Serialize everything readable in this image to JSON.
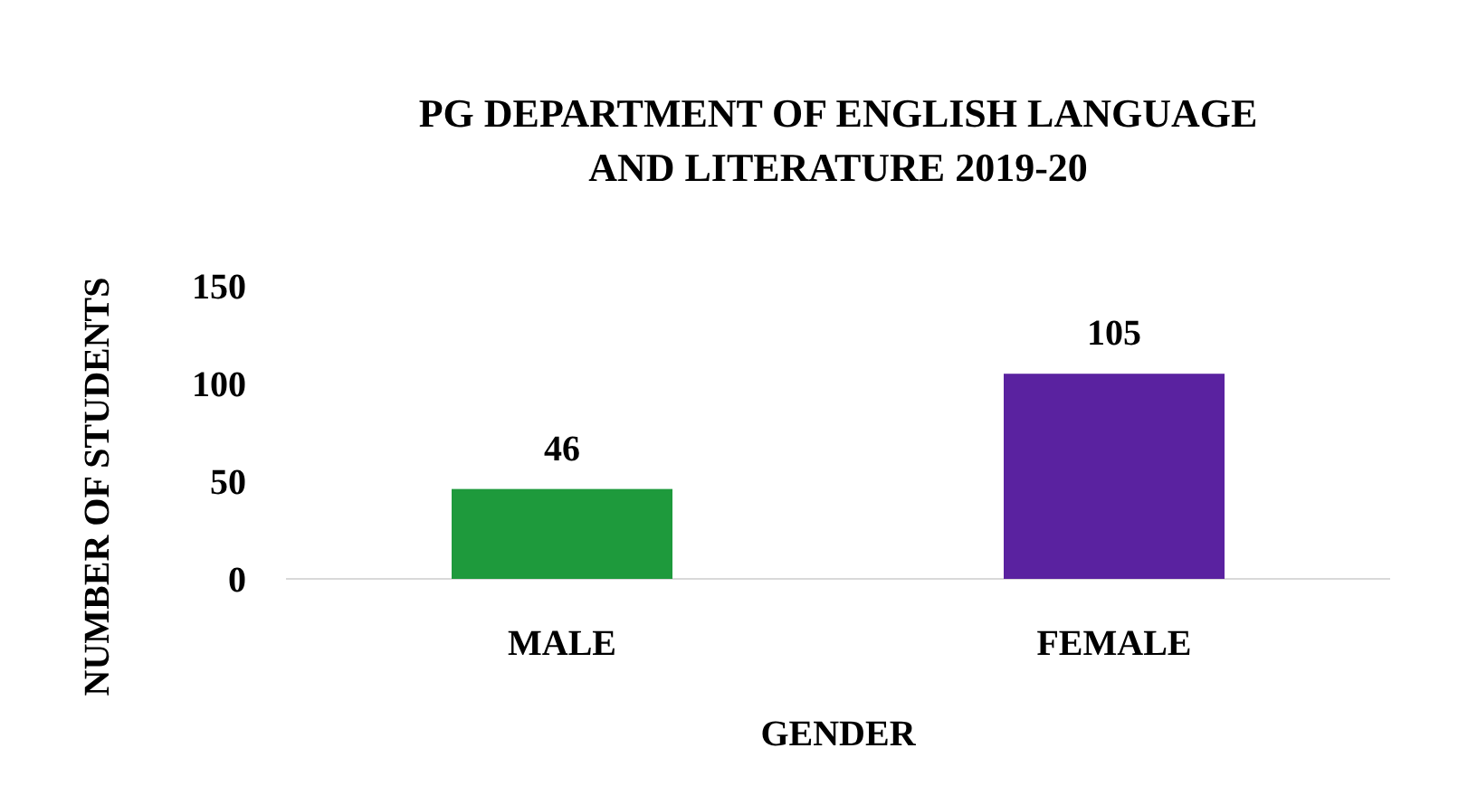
{
  "chart_data": {
    "type": "bar",
    "title": "PG DEPARTMENT OF ENGLISH LANGUAGE AND LITERATURE 2019-20",
    "xlabel": "GENDER",
    "ylabel": "NUMBER OF STUDENTS",
    "categories": [
      "MALE",
      "FEMALE"
    ],
    "values": [
      46,
      105
    ],
    "colors": [
      "#1e9a3c",
      "#5a22a0"
    ],
    "ylim": [
      0,
      150
    ],
    "yticks": [
      0,
      50,
      100,
      150
    ],
    "data_labels": true
  }
}
